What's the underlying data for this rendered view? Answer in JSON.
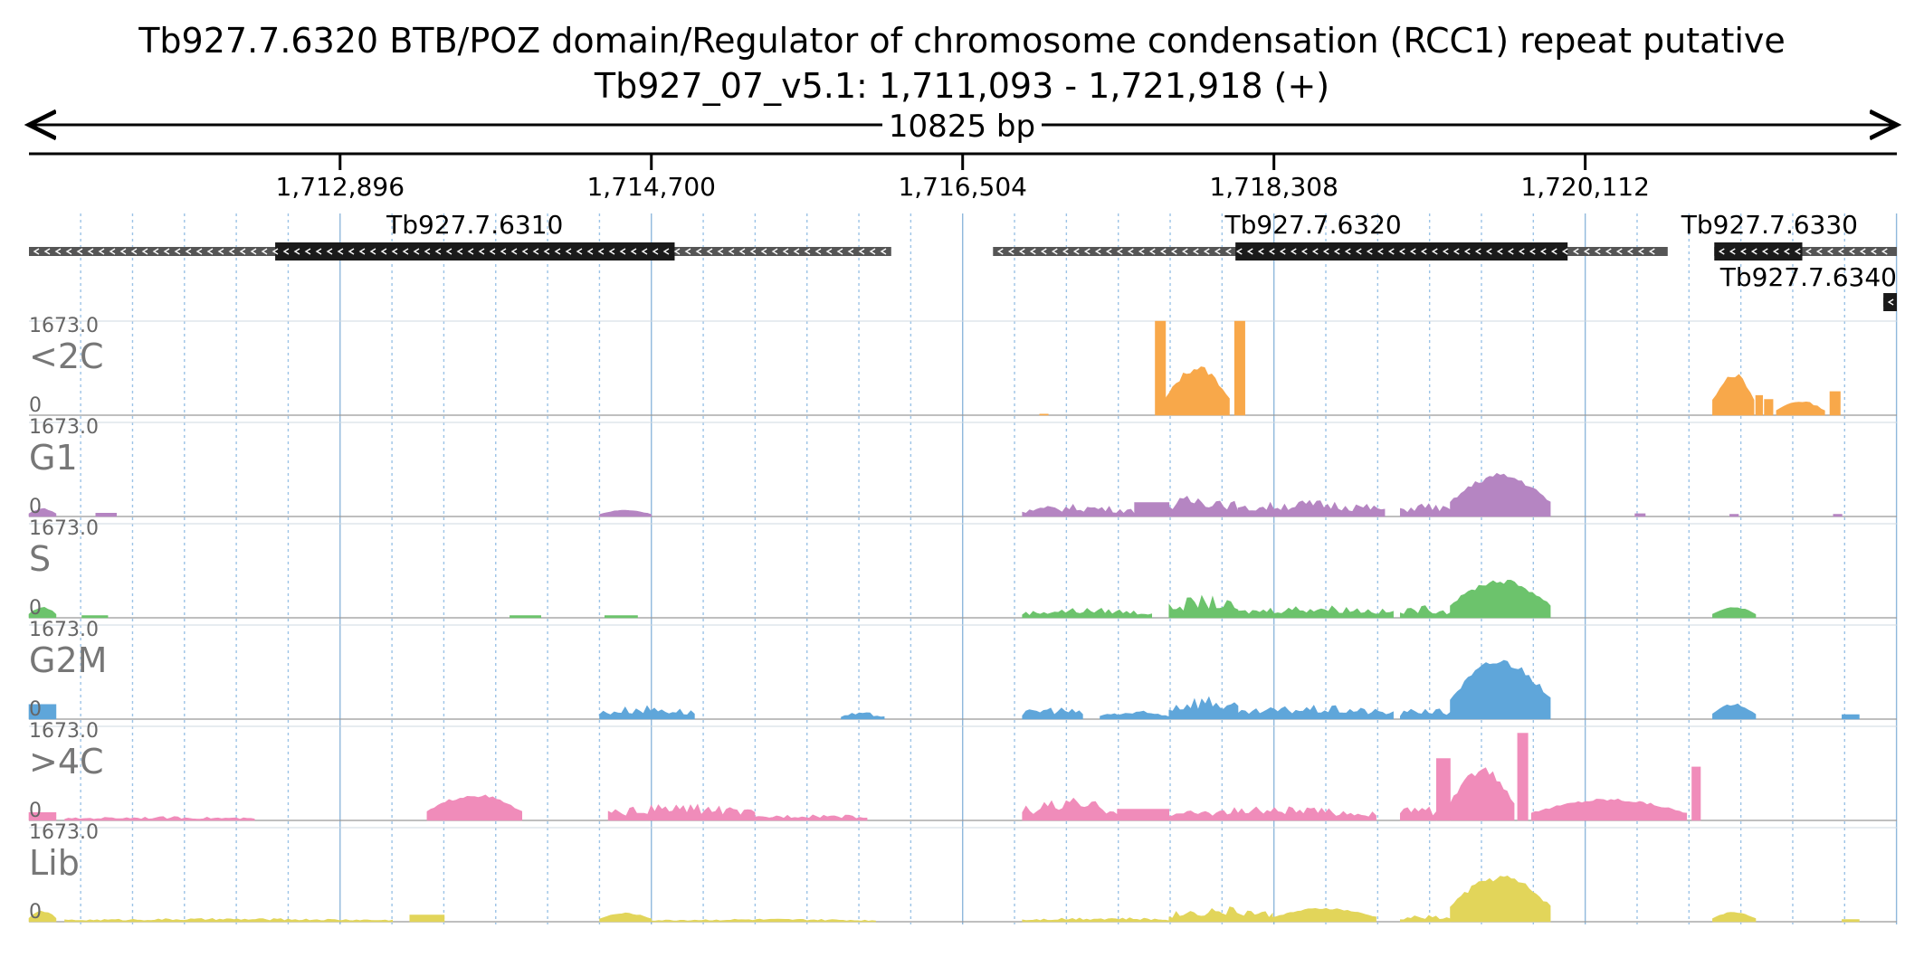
{
  "header": {
    "title_line1": "Tb927.7.6320  BTB/POZ domain/Regulator of chromosome condensation (RCC1) repeat  putative",
    "title_line2": "Tb927_07_v5.1: 1,711,093 - 1,721,918 (+)",
    "span_label": "10825 bp"
  },
  "ruler": {
    "ticks": [
      {
        "position": 1712896,
        "label": "1,712,896"
      },
      {
        "position": 1714700,
        "label": "1,714,700"
      },
      {
        "position": 1716504,
        "label": "1,716,504"
      },
      {
        "position": 1718308,
        "label": "1,718,308"
      },
      {
        "position": 1720112,
        "label": "1,720,112"
      }
    ]
  },
  "genes": [
    {
      "name": "Tb927.7.6310",
      "start": 1711093,
      "end": 1716090,
      "cds_start": 1712520,
      "cds_end": 1714835,
      "strand": "-"
    },
    {
      "name": "Tb927.7.6320",
      "start": 1716680,
      "end": 1720590,
      "cds_start": 1718085,
      "cds_end": 1720010,
      "strand": "-"
    },
    {
      "name": "Tb927.7.6330",
      "start": 1720860,
      "end": 1721918,
      "cds_start": 1720860,
      "cds_end": 1721370,
      "strand": "-"
    },
    {
      "name": "Tb927.7.6340",
      "start": 1721840,
      "end": 1721918,
      "cds_start": 1721840,
      "cds_end": 1721918,
      "strand": "-"
    }
  ],
  "chart_data": {
    "type": "area",
    "region": {
      "chrom": "Tb927_07_v5.1",
      "start": 1711093,
      "end": 1721918,
      "strand": "+"
    },
    "ylim": [
      0,
      1673.0
    ],
    "tracks": [
      {
        "name": "<2C",
        "color": "#f8a84a",
        "max_label": "1673.0",
        "min_label": "0",
        "segments": [
          {
            "start": 1716950,
            "end": 1717000,
            "profile": "flat",
            "h": 20
          },
          {
            "start": 1717620,
            "end": 1717680,
            "profile": "flat",
            "h": 1673
          },
          {
            "start": 1717680,
            "end": 1718050,
            "profile": "hump",
            "h": 900
          },
          {
            "start": 1718080,
            "end": 1718140,
            "profile": "flat",
            "h": 1673
          },
          {
            "start": 1720850,
            "end": 1721090,
            "profile": "hump",
            "h": 780
          },
          {
            "start": 1721100,
            "end": 1721140,
            "profile": "flat",
            "h": 350
          },
          {
            "start": 1721150,
            "end": 1721200,
            "profile": "flat",
            "h": 280
          },
          {
            "start": 1721220,
            "end": 1721500,
            "profile": "hump",
            "h": 260
          },
          {
            "start": 1721530,
            "end": 1721590,
            "profile": "flat",
            "h": 420
          }
        ]
      },
      {
        "name": "G1",
        "color": "#b585c2",
        "max_label": "1673.0",
        "min_label": "0",
        "segments": [
          {
            "start": 1711093,
            "end": 1711250,
            "profile": "hump",
            "h": 150
          },
          {
            "start": 1711480,
            "end": 1711600,
            "profile": "flat",
            "h": 60
          },
          {
            "start": 1714400,
            "end": 1714700,
            "profile": "hump",
            "h": 120
          },
          {
            "start": 1716850,
            "end": 1717500,
            "profile": "noisy",
            "h": 220
          },
          {
            "start": 1717500,
            "end": 1717700,
            "profile": "flat",
            "h": 250
          },
          {
            "start": 1717700,
            "end": 1718100,
            "profile": "noisy",
            "h": 420
          },
          {
            "start": 1718100,
            "end": 1718950,
            "profile": "noisy",
            "h": 300
          },
          {
            "start": 1719040,
            "end": 1719330,
            "profile": "noisy",
            "h": 250
          },
          {
            "start": 1719330,
            "end": 1719910,
            "profile": "hump",
            "h": 780
          },
          {
            "start": 1720400,
            "end": 1720460,
            "profile": "flat",
            "h": 50
          },
          {
            "start": 1720950,
            "end": 1721000,
            "profile": "flat",
            "h": 40
          },
          {
            "start": 1721550,
            "end": 1721600,
            "profile": "flat",
            "h": 40
          }
        ]
      },
      {
        "name": "S",
        "color": "#6cc36c",
        "max_label": "1673.0",
        "min_label": "0",
        "segments": [
          {
            "start": 1711093,
            "end": 1711250,
            "profile": "hump",
            "h": 200
          },
          {
            "start": 1711400,
            "end": 1711550,
            "profile": "flat",
            "h": 40
          },
          {
            "start": 1713880,
            "end": 1714060,
            "profile": "flat",
            "h": 40
          },
          {
            "start": 1714430,
            "end": 1714620,
            "profile": "flat",
            "h": 40
          },
          {
            "start": 1716850,
            "end": 1717600,
            "profile": "noisy",
            "h": 180
          },
          {
            "start": 1717700,
            "end": 1718100,
            "profile": "noisy",
            "h": 400
          },
          {
            "start": 1718100,
            "end": 1719000,
            "profile": "noisy",
            "h": 230
          },
          {
            "start": 1719040,
            "end": 1719330,
            "profile": "noisy",
            "h": 220
          },
          {
            "start": 1719330,
            "end": 1719910,
            "profile": "hump",
            "h": 700
          },
          {
            "start": 1720850,
            "end": 1721100,
            "profile": "hump",
            "h": 200
          }
        ]
      },
      {
        "name": "G2M",
        "color": "#5fa6da",
        "max_label": "1673.0",
        "min_label": "0",
        "segments": [
          {
            "start": 1711093,
            "end": 1711250,
            "profile": "flat",
            "h": 260
          },
          {
            "start": 1714400,
            "end": 1714950,
            "profile": "noisy",
            "h": 250
          },
          {
            "start": 1715800,
            "end": 1716050,
            "profile": "noisy",
            "h": 120
          },
          {
            "start": 1716850,
            "end": 1717200,
            "profile": "noisy",
            "h": 230
          },
          {
            "start": 1717300,
            "end": 1717700,
            "profile": "noisy",
            "h": 150
          },
          {
            "start": 1717700,
            "end": 1718100,
            "profile": "noisy",
            "h": 450
          },
          {
            "start": 1718100,
            "end": 1719000,
            "profile": "noisy",
            "h": 250
          },
          {
            "start": 1719040,
            "end": 1719330,
            "profile": "noisy",
            "h": 220
          },
          {
            "start": 1719330,
            "end": 1719910,
            "profile": "hump",
            "h": 1100
          },
          {
            "start": 1720850,
            "end": 1721100,
            "profile": "hump",
            "h": 280
          },
          {
            "start": 1721600,
            "end": 1721700,
            "profile": "flat",
            "h": 80
          }
        ]
      },
      {
        "name": ">4C",
        "color": "#f08cba",
        "max_label": "1673.0",
        "min_label": "0",
        "segments": [
          {
            "start": 1711093,
            "end": 1711250,
            "profile": "flat",
            "h": 140
          },
          {
            "start": 1711300,
            "end": 1712400,
            "profile": "noisy",
            "h": 70
          },
          {
            "start": 1713400,
            "end": 1713950,
            "profile": "hump",
            "h": 480
          },
          {
            "start": 1714450,
            "end": 1715300,
            "profile": "noisy",
            "h": 300
          },
          {
            "start": 1715300,
            "end": 1715950,
            "profile": "noisy",
            "h": 120
          },
          {
            "start": 1716850,
            "end": 1717400,
            "profile": "noisy",
            "h": 400
          },
          {
            "start": 1717400,
            "end": 1717700,
            "profile": "flat",
            "h": 200
          },
          {
            "start": 1717700,
            "end": 1718900,
            "profile": "noisy",
            "h": 250
          },
          {
            "start": 1719040,
            "end": 1719250,
            "profile": "noisy",
            "h": 300
          },
          {
            "start": 1719250,
            "end": 1719330,
            "profile": "flat",
            "h": 1100
          },
          {
            "start": 1719330,
            "end": 1719700,
            "profile": "hump",
            "h": 950
          },
          {
            "start": 1719720,
            "end": 1719780,
            "profile": "flat",
            "h": 1550
          },
          {
            "start": 1719800,
            "end": 1720700,
            "profile": "hump",
            "h": 400
          },
          {
            "start": 1720730,
            "end": 1720780,
            "profile": "flat",
            "h": 950
          }
        ]
      },
      {
        "name": "Lib",
        "color": "#e2d55a",
        "max_label": "1673.0",
        "min_label": "0",
        "segments": [
          {
            "start": 1711093,
            "end": 1711250,
            "profile": "hump",
            "h": 200
          },
          {
            "start": 1711300,
            "end": 1713200,
            "profile": "noisy",
            "h": 60
          },
          {
            "start": 1713300,
            "end": 1713500,
            "profile": "flat",
            "h": 120
          },
          {
            "start": 1714400,
            "end": 1714700,
            "profile": "hump",
            "h": 160
          },
          {
            "start": 1714700,
            "end": 1716000,
            "profile": "noisy",
            "h": 50
          },
          {
            "start": 1716850,
            "end": 1717700,
            "profile": "noisy",
            "h": 80
          },
          {
            "start": 1717700,
            "end": 1718300,
            "profile": "noisy",
            "h": 280
          },
          {
            "start": 1718300,
            "end": 1718900,
            "profile": "hump",
            "h": 250
          },
          {
            "start": 1719040,
            "end": 1719330,
            "profile": "noisy",
            "h": 120
          },
          {
            "start": 1719330,
            "end": 1719910,
            "profile": "hump",
            "h": 850
          },
          {
            "start": 1720850,
            "end": 1721100,
            "profile": "hump",
            "h": 180
          },
          {
            "start": 1721600,
            "end": 1721700,
            "profile": "flat",
            "h": 40
          }
        ]
      }
    ]
  }
}
